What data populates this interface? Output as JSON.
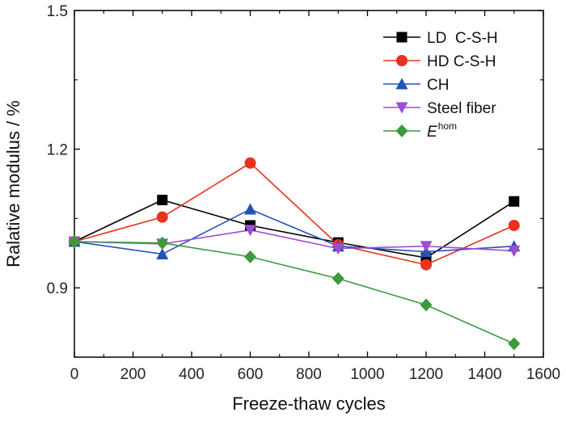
{
  "chart_data": {
    "type": "line",
    "title": "",
    "xlabel": "Freeze-thaw cycles",
    "ylabel": "Ralative modulus / %",
    "xlim": [
      0,
      1600
    ],
    "ylim": [
      0.75,
      1.5
    ],
    "xticks": [
      0,
      200,
      400,
      600,
      800,
      1000,
      1200,
      1400,
      1600
    ],
    "yticks": [
      0.9,
      1.2,
      1.5
    ],
    "ytick_labels": [
      "0.9",
      "1.2",
      "1.5"
    ],
    "grid": false,
    "legend_position": "top-right",
    "x": [
      0,
      300,
      600,
      900,
      1200,
      1500
    ],
    "series": [
      {
        "name": "LD  C-S-H",
        "color": "#000000",
        "marker": "square",
        "values": [
          1.0,
          1.09,
          1.035,
          0.998,
          0.965,
          1.087
        ]
      },
      {
        "name": "HD C-S-H",
        "color": "#e8321e",
        "marker": "circle",
        "values": [
          1.0,
          1.053,
          1.17,
          0.993,
          0.95,
          1.035
        ]
      },
      {
        "name": "CH",
        "color": "#2453b3",
        "marker": "triangle-up",
        "values": [
          1.0,
          0.973,
          1.07,
          0.99,
          0.978,
          0.99
        ]
      },
      {
        "name": "Steel fiber",
        "color": "#9b4fd1",
        "marker": "triangle-down",
        "values": [
          1.0,
          0.995,
          1.025,
          0.985,
          0.99,
          0.98
        ]
      },
      {
        "name": "E",
        "name_sup": "hom",
        "name_italic": true,
        "color": "#3c9a3c",
        "marker": "diamond",
        "values": [
          1.0,
          0.997,
          0.967,
          0.92,
          0.863,
          0.779
        ]
      }
    ]
  }
}
